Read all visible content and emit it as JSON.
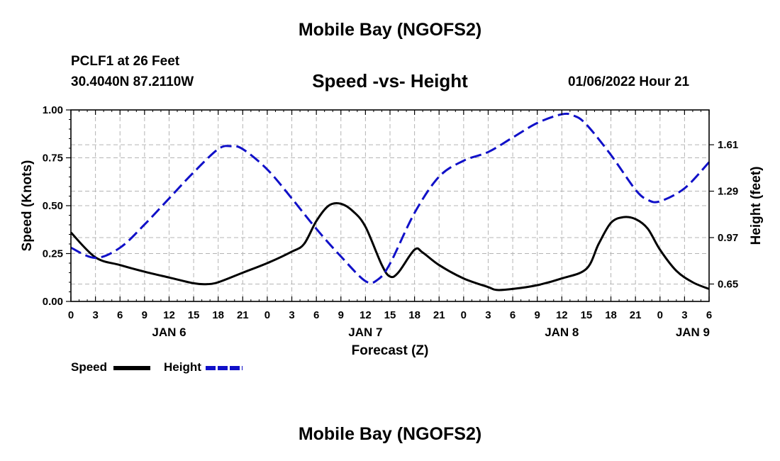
{
  "header": {
    "main_title": "Mobile Bay (NGOFS2)",
    "station": "PCLF1 at 26 Feet",
    "coords": "30.4040N  87.2110W",
    "chart_title": "Speed -vs- Height",
    "timestamp": "01/06/2022 Hour 21"
  },
  "footer": {
    "title": "Mobile Bay (NGOFS2)"
  },
  "legend": {
    "speed_label": "Speed",
    "height_label": "Height"
  },
  "chart_data": {
    "type": "line",
    "title": "Speed -vs- Height",
    "xlabel": "Forecast (Z)",
    "ylabel_left": "Speed (Knots)",
    "ylabel_right": "Height (feet)",
    "x_range_hours": [
      0,
      78
    ],
    "ylim_left": [
      0,
      1.0
    ],
    "ylim_right": [
      0.53,
      1.85
    ],
    "left_ticks": [
      "0.00",
      "0.25",
      "0.50",
      "0.75",
      "1.00"
    ],
    "left_tick_values": [
      0,
      0.25,
      0.5,
      0.75,
      1.0
    ],
    "right_ticks": [
      "0.65",
      "0.97",
      "1.29",
      "1.61"
    ],
    "right_tick_values": [
      0.65,
      0.97,
      1.29,
      1.61
    ],
    "x_tick_labels": [
      "0",
      "3",
      "6",
      "9",
      "12",
      "15",
      "18",
      "21",
      "0",
      "3",
      "6",
      "9",
      "12",
      "15",
      "18",
      "21",
      "0",
      "3",
      "6",
      "9",
      "12",
      "15",
      "18",
      "21",
      "0",
      "3",
      "6"
    ],
    "date_labels": [
      {
        "label": "JAN 6",
        "hour": 12
      },
      {
        "label": "JAN 7",
        "hour": 36
      },
      {
        "label": "JAN 8",
        "hour": 60
      },
      {
        "label": "JAN 9",
        "hour": 76
      }
    ],
    "grid": true,
    "series": [
      {
        "name": "Speed",
        "axis": "left",
        "color": "#000000",
        "style": "solid",
        "x": [
          0,
          3,
          6,
          9,
          12,
          15,
          16.5,
          18,
          21,
          24,
          27,
          28.5,
          30,
          31.5,
          33,
          34.5,
          36,
          38,
          39,
          40,
          42,
          43,
          45,
          48,
          51,
          52,
          54,
          57,
          60,
          63,
          64.5,
          66,
          67.5,
          69,
          70.5,
          72,
          74,
          76,
          78
        ],
        "values": [
          0.36,
          0.23,
          0.19,
          0.155,
          0.125,
          0.095,
          0.09,
          0.1,
          0.15,
          0.2,
          0.26,
          0.3,
          0.42,
          0.5,
          0.51,
          0.47,
          0.39,
          0.19,
          0.13,
          0.15,
          0.27,
          0.255,
          0.19,
          0.12,
          0.075,
          0.06,
          0.065,
          0.085,
          0.12,
          0.17,
          0.3,
          0.41,
          0.44,
          0.43,
          0.38,
          0.27,
          0.16,
          0.1,
          0.065
        ]
      },
      {
        "name": "Height",
        "axis": "right",
        "color": "#1010c8",
        "style": "dashed",
        "x": [
          0,
          3,
          6,
          9,
          12,
          15,
          18,
          19.5,
          21,
          24,
          27,
          30,
          33,
          36,
          37.5,
          39,
          42,
          45,
          48,
          51,
          54,
          57,
          60,
          61.5,
          63,
          66,
          69,
          70.5,
          72,
          75,
          78
        ],
        "values": [
          0.9,
          0.83,
          0.9,
          1.06,
          1.24,
          1.42,
          1.58,
          1.6,
          1.58,
          1.44,
          1.24,
          1.03,
          0.84,
          0.67,
          0.68,
          0.79,
          1.14,
          1.39,
          1.5,
          1.56,
          1.66,
          1.76,
          1.82,
          1.81,
          1.75,
          1.54,
          1.3,
          1.23,
          1.22,
          1.31,
          1.49
        ]
      }
    ]
  }
}
